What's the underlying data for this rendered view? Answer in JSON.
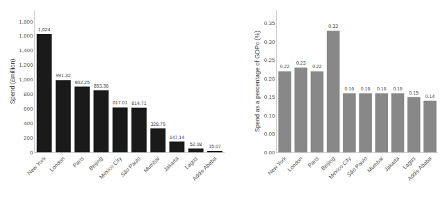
{
  "chart_data": [
    {
      "type": "bar",
      "categories": [
        "New York",
        "London",
        "Paris",
        "Beijing",
        "Mexico City",
        "São Paulo",
        "Mumbai",
        "Jakarta",
        "Lagos",
        "Addis Ababa"
      ],
      "values": [
        1624,
        991.32,
        902.25,
        853.36,
        617.01,
        614.71,
        328.79,
        147.14,
        52.08,
        15.07
      ],
      "value_labels": [
        "1,624",
        "991.32",
        "902.25",
        "853.36",
        "617.01",
        "614.71",
        "328.79",
        "147.14",
        "52.08",
        "15.07"
      ],
      "color": "#1a1a1a",
      "y_label": "Spend (£million)",
      "ylim": [
        0,
        1950
      ],
      "yticks": [
        0,
        200,
        400,
        600,
        800,
        {
          "value": 1000,
          "label": "1,000"
        },
        {
          "value": 1200,
          "label": "1,200"
        },
        {
          "value": 1400,
          "label": "1,400"
        },
        {
          "value": 1600,
          "label": "1,600"
        },
        {
          "value": 1800,
          "label": "1,800"
        }
      ],
      "data_labels": true,
      "grid": false
    },
    {
      "type": "bar",
      "categories": [
        "New York",
        "London",
        "Paris",
        "Beijing",
        "Mexico City",
        "São Paulo",
        "Mumbai",
        "Jakarta",
        "Lagos",
        "Addis Ababa"
      ],
      "values": [
        0.22,
        0.23,
        0.22,
        0.33,
        0.16,
        0.16,
        0.16,
        0.16,
        0.15,
        0.14
      ],
      "color": "#888888",
      "y_label": "Spend as a percentage of GDPc (%)",
      "ylim": [
        0,
        0.385
      ],
      "yticks": [
        {
          "value": 0,
          "label": "0.00"
        },
        0.05,
        {
          "value": 0.1,
          "label": "0.10"
        },
        0.15,
        {
          "value": 0.2,
          "label": "0.20"
        },
        0.25,
        {
          "value": 0.3,
          "label": "0.30"
        },
        0.35
      ],
      "data_labels": true,
      "grid": false
    }
  ]
}
